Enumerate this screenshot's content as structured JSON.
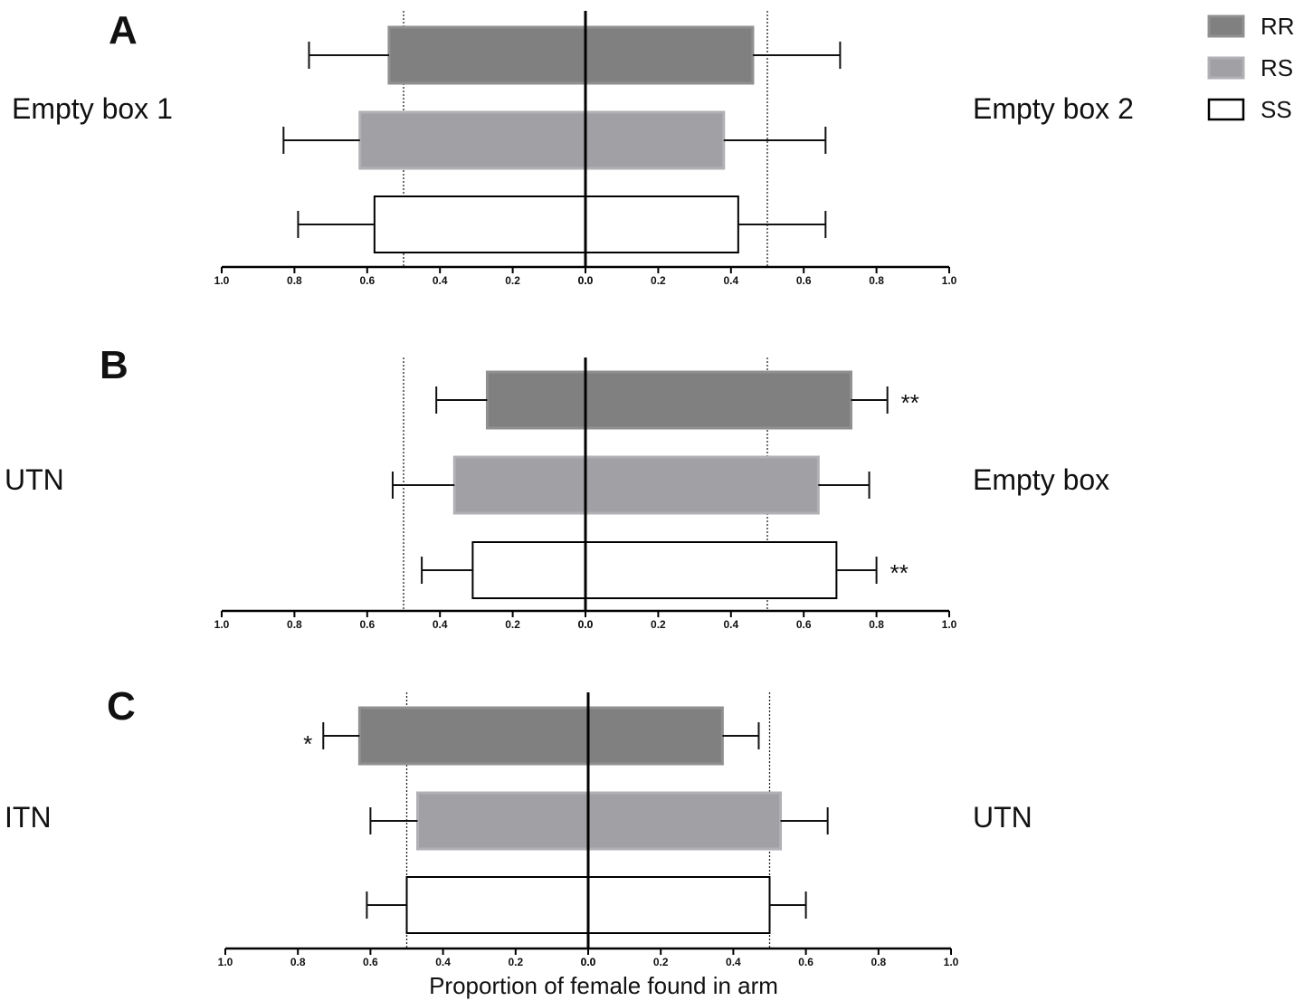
{
  "chart_data": {
    "type": "bar",
    "orientation": "diverging-horizontal",
    "xlabel": "Proportion of female found in arm",
    "tick_labels": [
      "1.0",
      "0.8",
      "0.6",
      "0.4",
      "0.2",
      "0.0",
      "0.0",
      "0.2",
      "0.4",
      "0.6",
      "0.8",
      "1.0"
    ],
    "xlim": [
      -1.0,
      1.0
    ],
    "reference_lines": [
      0.5
    ],
    "legend": {
      "placement": "top-right",
      "entries": [
        {
          "name": "RR",
          "color": "#808080"
        },
        {
          "name": "RS",
          "color": "#a0a0a5"
        },
        {
          "name": "SS",
          "color": "#ffffff"
        }
      ]
    },
    "panels": [
      {
        "letter": "A",
        "left_label": "Empty box 1",
        "right_label": "Empty box 2",
        "series": [
          {
            "name": "RR",
            "left": 0.54,
            "right": 0.46,
            "left_err": 0.22,
            "right_err": 0.24,
            "left_sig": "",
            "right_sig": ""
          },
          {
            "name": "RS",
            "left": 0.62,
            "right": 0.38,
            "left_err": 0.21,
            "right_err": 0.28,
            "left_sig": "",
            "right_sig": ""
          },
          {
            "name": "SS",
            "left": 0.58,
            "right": 0.42,
            "left_err": 0.21,
            "right_err": 0.24,
            "left_sig": "",
            "right_sig": ""
          }
        ]
      },
      {
        "letter": "B",
        "left_label": "UTN",
        "right_label": "Empty box",
        "series": [
          {
            "name": "RR",
            "left": 0.27,
            "right": 0.73,
            "left_err": 0.14,
            "right_err": 0.1,
            "left_sig": "",
            "right_sig": "**"
          },
          {
            "name": "RS",
            "left": 0.36,
            "right": 0.64,
            "left_err": 0.17,
            "right_err": 0.14,
            "left_sig": "",
            "right_sig": ""
          },
          {
            "name": "SS",
            "left": 0.31,
            "right": 0.69,
            "left_err": 0.14,
            "right_err": 0.11,
            "left_sig": "",
            "right_sig": "**"
          }
        ]
      },
      {
        "letter": "C",
        "left_label": "ITN",
        "right_label": "UTN",
        "series": [
          {
            "name": "RR",
            "left": 0.63,
            "right": 0.37,
            "left_err": 0.1,
            "right_err": 0.1,
            "left_sig": "*",
            "right_sig": ""
          },
          {
            "name": "RS",
            "left": 0.47,
            "right": 0.53,
            "left_err": 0.13,
            "right_err": 0.13,
            "left_sig": "",
            "right_sig": ""
          },
          {
            "name": "SS",
            "left": 0.5,
            "right": 0.5,
            "left_err": 0.11,
            "right_err": 0.1,
            "left_sig": "",
            "right_sig": ""
          }
        ]
      }
    ]
  }
}
